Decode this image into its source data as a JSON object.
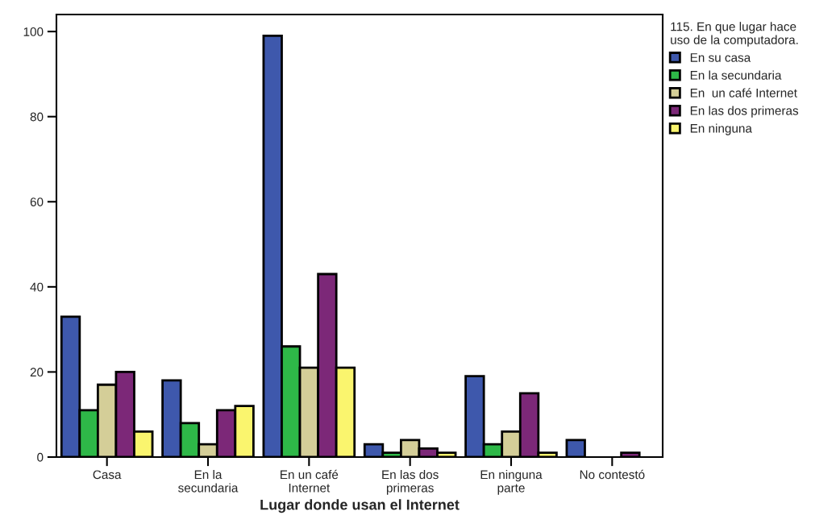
{
  "chart_data": {
    "type": "bar",
    "xlabel": "Lugar donde usan el Internet",
    "legend_title": "115. En que lugar hace\nuso de la computadora.",
    "categories": [
      "Casa",
      "En la\nsecundaria",
      "En un café\nInternet",
      "En las dos\nprimeras",
      "En ninguna\nparte",
      "No contestó"
    ],
    "series": [
      {
        "name": "En su casa",
        "color": "#3e58ac",
        "values": [
          33,
          18,
          99,
          3,
          19,
          4
        ]
      },
      {
        "name": "En la secundaria",
        "color": "#2eb848",
        "values": [
          11,
          8,
          26,
          1,
          3,
          null
        ]
      },
      {
        "name": "En  un café Internet",
        "color": "#d4ce98",
        "values": [
          17,
          3,
          21,
          4,
          6,
          null
        ]
      },
      {
        "name": "En las dos primeras",
        "color": "#7c2878",
        "values": [
          20,
          11,
          43,
          2,
          15,
          1
        ]
      },
      {
        "name": "En ninguna",
        "color": "#faf56e",
        "values": [
          6,
          12,
          21,
          1,
          1,
          null
        ]
      }
    ],
    "ylim": [
      0,
      104
    ],
    "yticks": [
      0,
      20,
      40,
      60,
      80,
      100
    ],
    "legend": "right",
    "grid": false
  }
}
